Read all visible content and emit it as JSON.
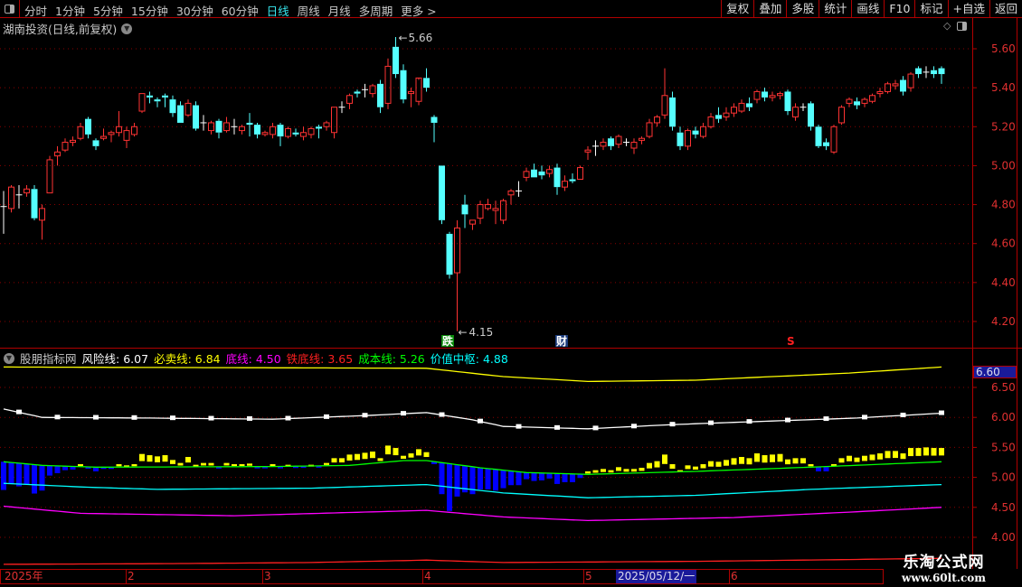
{
  "toolbar": {
    "periods": [
      "分时",
      "1分钟",
      "5分钟",
      "15分钟",
      "30分钟",
      "60分钟",
      "日线",
      "周线",
      "月线",
      "多周期",
      "更多 >"
    ],
    "active_period": "日线",
    "right_buttons": [
      "复权",
      "叠加",
      "多股",
      "统计",
      "画线",
      "F10",
      "标记",
      "+自选",
      "返回"
    ]
  },
  "header": {
    "title": "湖南投资(日线,前复权)"
  },
  "main_chart": {
    "y_ticks": [
      "5.60",
      "5.40",
      "5.20",
      "5.00",
      "4.80",
      "4.60",
      "4.40",
      "4.20"
    ],
    "high_label": "5.66",
    "low_label": "4.15",
    "markers": [
      {
        "text": "跌",
        "color": "#0a8a0a"
      },
      {
        "text": "财",
        "color": "#1a3a7a"
      },
      {
        "text": "S",
        "color": "#ff2020"
      }
    ],
    "colors": {
      "up": "#ff3333",
      "down": "#55ffff",
      "flat": "#ffffff"
    }
  },
  "indicator": {
    "name": "股朋指标网",
    "items": [
      {
        "label": "风险线",
        "value": "6.07",
        "color": "#ffffff"
      },
      {
        "label": "必卖线",
        "value": "6.84",
        "color": "#ffff00"
      },
      {
        "label": "底线",
        "value": "4.50",
        "color": "#ff00ff"
      },
      {
        "label": "铁底线",
        "value": "3.65",
        "color": "#ff2020"
      },
      {
        "label": "成本线",
        "value": "5.26",
        "color": "#00ff00"
      },
      {
        "label": "价值中枢",
        "value": "4.88",
        "color": "#00ffff"
      }
    ],
    "y_ticks": [
      "6.50",
      "6.00",
      "5.50",
      "5.00",
      "4.50",
      "4.00"
    ],
    "cursor_value": "6.60"
  },
  "timebar": {
    "labels": [
      "2025年",
      "2",
      "3",
      "4",
      "5",
      "6"
    ],
    "cursor_date": "2025/05/12/一"
  },
  "watermark": {
    "line1": "乐淘公式网",
    "line2": "www.60lt.com"
  },
  "chart_data": {
    "type": "candlestick",
    "y_range": [
      4.1,
      5.7
    ],
    "ohlc": [
      [
        4.79,
        4.87,
        4.65,
        4.79
      ],
      [
        4.78,
        4.9,
        4.76,
        4.89
      ],
      [
        4.85,
        4.9,
        4.78,
        4.85
      ],
      [
        4.86,
        4.9,
        4.84,
        4.88
      ],
      [
        4.88,
        4.9,
        4.72,
        4.73
      ],
      [
        4.72,
        4.8,
        4.62,
        4.78
      ],
      [
        4.86,
        5.05,
        4.86,
        5.03
      ],
      [
        5.05,
        5.1,
        5.0,
        5.07
      ],
      [
        5.08,
        5.14,
        5.07,
        5.12
      ],
      [
        5.12,
        5.15,
        5.1,
        5.13
      ],
      [
        5.14,
        5.22,
        5.13,
        5.2
      ],
      [
        5.24,
        5.25,
        5.14,
        5.16
      ],
      [
        5.13,
        5.14,
        5.08,
        5.1
      ],
      [
        5.14,
        5.19,
        5.13,
        5.15
      ],
      [
        5.16,
        5.18,
        5.12,
        5.17
      ],
      [
        5.17,
        5.28,
        5.15,
        5.2
      ],
      [
        5.13,
        5.2,
        5.09,
        5.18
      ],
      [
        5.16,
        5.22,
        5.15,
        5.2
      ],
      [
        5.28,
        5.37,
        5.27,
        5.37
      ],
      [
        5.36,
        5.38,
        5.32,
        5.35
      ],
      [
        5.34,
        5.35,
        5.3,
        5.33
      ],
      [
        5.36,
        5.37,
        5.3,
        5.35
      ],
      [
        5.34,
        5.36,
        5.25,
        5.27
      ],
      [
        5.31,
        5.33,
        5.22,
        5.22
      ],
      [
        5.26,
        5.34,
        5.25,
        5.32
      ],
      [
        5.31,
        5.33,
        5.18,
        5.19
      ],
      [
        5.22,
        5.26,
        5.18,
        5.22
      ],
      [
        5.18,
        5.23,
        5.16,
        5.22
      ],
      [
        5.23,
        5.24,
        5.14,
        5.17
      ],
      [
        5.18,
        5.25,
        5.17,
        5.22
      ],
      [
        5.2,
        5.24,
        5.16,
        5.2
      ],
      [
        5.18,
        5.21,
        5.16,
        5.2
      ],
      [
        5.22,
        5.27,
        5.15,
        5.21
      ],
      [
        5.21,
        5.22,
        5.14,
        5.16
      ],
      [
        5.16,
        5.18,
        5.15,
        5.17
      ],
      [
        5.16,
        5.22,
        5.14,
        5.2
      ],
      [
        5.21,
        5.22,
        5.1,
        5.15
      ],
      [
        5.15,
        5.2,
        5.14,
        5.19
      ],
      [
        5.17,
        5.19,
        5.15,
        5.16
      ],
      [
        5.15,
        5.2,
        5.13,
        5.17
      ],
      [
        5.16,
        5.2,
        5.14,
        5.19
      ],
      [
        5.2,
        5.21,
        5.14,
        5.19
      ],
      [
        5.2,
        5.23,
        5.18,
        5.22
      ],
      [
        5.17,
        5.3,
        5.14,
        5.3
      ],
      [
        5.3,
        5.33,
        5.27,
        5.3
      ],
      [
        5.32,
        5.37,
        5.29,
        5.36
      ],
      [
        5.38,
        5.39,
        5.35,
        5.37
      ],
      [
        5.39,
        5.42,
        5.35,
        5.39
      ],
      [
        5.37,
        5.42,
        5.35,
        5.41
      ],
      [
        5.42,
        5.44,
        5.27,
        5.3
      ],
      [
        5.32,
        5.55,
        5.29,
        5.51
      ],
      [
        5.61,
        5.66,
        5.45,
        5.47
      ],
      [
        5.49,
        5.52,
        5.32,
        5.34
      ],
      [
        5.37,
        5.4,
        5.3,
        5.38
      ],
      [
        5.33,
        5.44,
        5.31,
        5.45
      ],
      [
        5.45,
        5.5,
        5.38,
        5.4
      ],
      [
        5.25,
        5.26,
        5.12,
        5.22
      ],
      [
        5.0,
        5.0,
        4.7,
        4.72
      ],
      [
        4.65,
        4.66,
        4.42,
        4.44
      ],
      [
        4.45,
        4.72,
        4.15,
        4.68
      ],
      [
        4.8,
        4.85,
        4.68,
        4.75
      ],
      [
        4.7,
        4.72,
        4.67,
        4.72
      ],
      [
        4.73,
        4.82,
        4.7,
        4.8
      ],
      [
        4.78,
        4.83,
        4.77,
        4.8
      ],
      [
        4.77,
        4.82,
        4.7,
        4.78
      ],
      [
        4.72,
        4.83,
        4.7,
        4.82
      ],
      [
        4.85,
        4.88,
        4.8,
        4.87
      ],
      [
        4.87,
        4.92,
        4.84,
        4.87
      ],
      [
        4.94,
        4.99,
        4.92,
        4.97
      ],
      [
        4.98,
        5.01,
        4.94,
        4.94
      ],
      [
        4.97,
        5.0,
        4.93,
        4.95
      ],
      [
        4.96,
        5.0,
        4.94,
        4.98
      ],
      [
        4.99,
        5.01,
        4.85,
        4.89
      ],
      [
        4.89,
        4.95,
        4.87,
        4.92
      ],
      [
        4.93,
        4.96,
        4.91,
        4.92
      ],
      [
        4.93,
        5.0,
        4.93,
        4.99
      ],
      [
        5.07,
        5.1,
        5.03,
        5.08
      ],
      [
        5.1,
        5.13,
        5.05,
        5.1
      ],
      [
        5.1,
        5.14,
        5.08,
        5.12
      ],
      [
        5.14,
        5.15,
        5.08,
        5.1
      ],
      [
        5.11,
        5.16,
        5.09,
        5.15
      ],
      [
        5.12,
        5.14,
        5.1,
        5.12
      ],
      [
        5.09,
        5.14,
        5.06,
        5.12
      ],
      [
        5.13,
        5.15,
        5.11,
        5.14
      ],
      [
        5.15,
        5.24,
        5.14,
        5.22
      ],
      [
        5.22,
        5.26,
        5.2,
        5.25
      ],
      [
        5.26,
        5.5,
        5.24,
        5.36
      ],
      [
        5.35,
        5.38,
        5.18,
        5.2
      ],
      [
        5.17,
        5.2,
        5.08,
        5.1
      ],
      [
        5.1,
        5.19,
        5.08,
        5.18
      ],
      [
        5.18,
        5.2,
        5.14,
        5.16
      ],
      [
        5.15,
        5.22,
        5.14,
        5.2
      ],
      [
        5.2,
        5.27,
        5.19,
        5.25
      ],
      [
        5.26,
        5.3,
        5.22,
        5.24
      ],
      [
        5.25,
        5.3,
        5.23,
        5.27
      ],
      [
        5.27,
        5.32,
        5.25,
        5.3
      ],
      [
        5.28,
        5.34,
        5.27,
        5.32
      ],
      [
        5.32,
        5.35,
        5.28,
        5.3
      ],
      [
        5.34,
        5.39,
        5.32,
        5.38
      ],
      [
        5.38,
        5.4,
        5.33,
        5.35
      ],
      [
        5.35,
        5.38,
        5.33,
        5.36
      ],
      [
        5.36,
        5.38,
        5.34,
        5.37
      ],
      [
        5.38,
        5.39,
        5.26,
        5.28
      ],
      [
        5.25,
        5.32,
        5.23,
        5.3
      ],
      [
        5.3,
        5.32,
        5.28,
        5.3
      ],
      [
        5.32,
        5.33,
        5.18,
        5.2
      ],
      [
        5.2,
        5.21,
        5.09,
        5.1
      ],
      [
        5.12,
        5.14,
        5.08,
        5.1
      ],
      [
        5.07,
        5.21,
        5.06,
        5.2
      ],
      [
        5.22,
        5.31,
        5.21,
        5.3
      ],
      [
        5.32,
        5.35,
        5.3,
        5.34
      ],
      [
        5.33,
        5.35,
        5.29,
        5.31
      ],
      [
        5.32,
        5.35,
        5.3,
        5.34
      ],
      [
        5.33,
        5.37,
        5.32,
        5.36
      ],
      [
        5.37,
        5.4,
        5.35,
        5.38
      ],
      [
        5.38,
        5.43,
        5.37,
        5.42
      ],
      [
        5.41,
        5.44,
        5.39,
        5.42
      ],
      [
        5.44,
        5.46,
        5.36,
        5.38
      ],
      [
        5.4,
        5.48,
        5.38,
        5.47
      ],
      [
        5.5,
        5.51,
        5.45,
        5.47
      ],
      [
        5.48,
        5.51,
        5.45,
        5.48
      ],
      [
        5.49,
        5.51,
        5.45,
        5.47
      ],
      [
        5.5,
        5.51,
        5.42,
        5.47
      ]
    ],
    "indicator_series": [
      {
        "name": "风险线",
        "color": "#ffffff",
        "knots": [
          [
            0,
            6.14
          ],
          [
            5,
            6.0
          ],
          [
            18,
            5.99
          ],
          [
            35,
            5.97
          ],
          [
            47,
            6.03
          ],
          [
            55,
            6.08
          ],
          [
            61,
            5.96
          ],
          [
            65,
            5.85
          ],
          [
            76,
            5.81
          ],
          [
            87,
            5.88
          ],
          [
            100,
            5.94
          ],
          [
            111,
            5.99
          ],
          [
            122,
            6.07
          ]
        ]
      },
      {
        "name": "必卖线",
        "color": "#ffff00",
        "knots": [
          [
            0,
            6.84
          ],
          [
            55,
            6.82
          ],
          [
            65,
            6.68
          ],
          [
            76,
            6.6
          ],
          [
            90,
            6.62
          ],
          [
            110,
            6.74
          ],
          [
            122,
            6.84
          ]
        ]
      },
      {
        "name": "成本线",
        "color": "#00ff00",
        "knots": [
          [
            0,
            5.26
          ],
          [
            5,
            5.2
          ],
          [
            12,
            5.17
          ],
          [
            35,
            5.18
          ],
          [
            45,
            5.2
          ],
          [
            52,
            5.28
          ],
          [
            55,
            5.28
          ],
          [
            62,
            5.16
          ],
          [
            68,
            5.08
          ],
          [
            76,
            5.05
          ],
          [
            90,
            5.1
          ],
          [
            105,
            5.17
          ],
          [
            122,
            5.26
          ]
        ]
      },
      {
        "name": "价值中枢",
        "color": "#00ffff",
        "knots": [
          [
            0,
            4.9
          ],
          [
            10,
            4.84
          ],
          [
            20,
            4.8
          ],
          [
            40,
            4.82
          ],
          [
            55,
            4.88
          ],
          [
            65,
            4.74
          ],
          [
            76,
            4.66
          ],
          [
            90,
            4.7
          ],
          [
            105,
            4.8
          ],
          [
            122,
            4.88
          ]
        ]
      },
      {
        "name": "底线",
        "color": "#ff00ff",
        "knots": [
          [
            0,
            4.52
          ],
          [
            10,
            4.4
          ],
          [
            30,
            4.36
          ],
          [
            55,
            4.45
          ],
          [
            65,
            4.34
          ],
          [
            76,
            4.28
          ],
          [
            95,
            4.33
          ],
          [
            110,
            4.42
          ],
          [
            122,
            4.5
          ]
        ]
      },
      {
        "name": "铁底线",
        "color": "#ff2020",
        "knots": [
          [
            0,
            3.55
          ],
          [
            20,
            3.56
          ],
          [
            40,
            3.58
          ],
          [
            55,
            3.62
          ],
          [
            65,
            3.58
          ],
          [
            90,
            3.6
          ],
          [
            110,
            3.63
          ],
          [
            122,
            3.65
          ]
        ]
      }
    ],
    "bar_colors": {
      "above": "#ffff00",
      "below": "#0000ff"
    }
  }
}
